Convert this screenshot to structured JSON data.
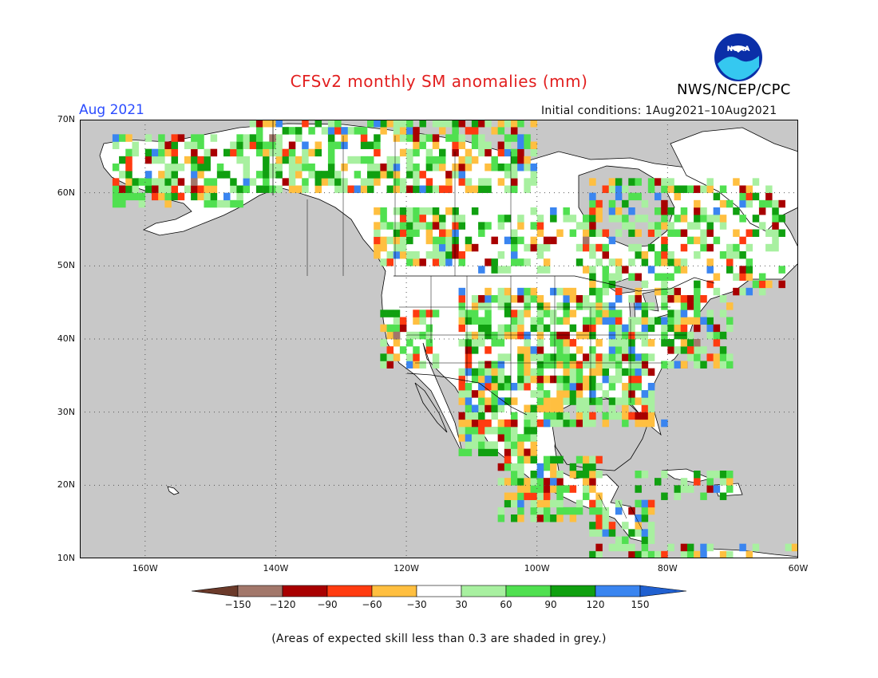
{
  "title": "CFSv2 monthly SM anomalies (mm)",
  "month_label": "Aug 2021",
  "initial_conditions": "Initial conditions: 1Aug2021–10Aug2021",
  "agency": "NWS/NCEP/CPC",
  "logo_text": "NOAA",
  "note": "(Areas of expected skill less than 0.3 are shaded in grey.)",
  "map": {
    "lon_range": [
      -170,
      -60
    ],
    "lat_range": [
      10,
      70
    ],
    "ocean_color": "#c8c8c8",
    "land_color": "#ffffff",
    "grid": "dotted"
  },
  "y_ticks": [
    {
      "value": 70,
      "label": "70N"
    },
    {
      "value": 60,
      "label": "60N"
    },
    {
      "value": 50,
      "label": "50N"
    },
    {
      "value": 40,
      "label": "40N"
    },
    {
      "value": 30,
      "label": "30N"
    },
    {
      "value": 20,
      "label": "20N"
    },
    {
      "value": 10,
      "label": "10N"
    }
  ],
  "x_ticks": [
    {
      "value": -160,
      "label": "160W"
    },
    {
      "value": -140,
      "label": "140W"
    },
    {
      "value": -120,
      "label": "120W"
    },
    {
      "value": -100,
      "label": "100W"
    },
    {
      "value": -80,
      "label": "80W"
    },
    {
      "value": -60,
      "label": "60W"
    }
  ],
  "colorbar": {
    "labels": [
      "−150",
      "−120",
      "−90",
      "−60",
      "−30",
      "30",
      "60",
      "90",
      "120",
      "150"
    ],
    "colors": [
      "#6b3a2a",
      "#a2776a",
      "#a80000",
      "#ff3b10",
      "#ffbf40",
      "#ffffff",
      "#a8f0a0",
      "#50e050",
      "#10a010",
      "#3a85f0",
      "#2060d0"
    ]
  },
  "anomaly_regions": [
    {
      "lon": [
        -165,
        -145
      ],
      "lat": [
        58,
        68
      ],
      "density": 0.55
    },
    {
      "lon": [
        -145,
        -100
      ],
      "lat": [
        60,
        70
      ],
      "density": 0.6
    },
    {
      "lon": [
        -125,
        -112
      ],
      "lat": [
        50,
        58
      ],
      "density": 0.7
    },
    {
      "lon": [
        -112,
        -90
      ],
      "lat": [
        49,
        58
      ],
      "density": 0.35
    },
    {
      "lon": [
        -92,
        -62
      ],
      "lat": [
        46,
        62
      ],
      "density": 0.45
    },
    {
      "lon": [
        -124,
        -115
      ],
      "lat": [
        36,
        44
      ],
      "density": 0.6
    },
    {
      "lon": [
        -112,
        -90
      ],
      "lat": [
        36,
        47
      ],
      "density": 0.65
    },
    {
      "lon": [
        -112,
        -100
      ],
      "lat": [
        24,
        36
      ],
      "density": 0.75
    },
    {
      "lon": [
        -100,
        -82
      ],
      "lat": [
        28,
        38
      ],
      "density": 0.75
    },
    {
      "lon": [
        -90,
        -70
      ],
      "lat": [
        36,
        46
      ],
      "density": 0.6
    },
    {
      "lon": [
        -106,
        -90
      ],
      "lat": [
        15,
        24
      ],
      "density": 0.6
    },
    {
      "lon": [
        -92,
        -82
      ],
      "lat": [
        10,
        18
      ],
      "density": 0.55
    },
    {
      "lon": [
        -85,
        -70
      ],
      "lat": [
        18,
        22
      ],
      "density": 0.5
    },
    {
      "lon": [
        -82,
        -60
      ],
      "lat": [
        10,
        12
      ],
      "density": 0.5
    }
  ],
  "anomaly_cells": [
    {
      "lon": -122,
      "lat": 40,
      "value": -130
    },
    {
      "lon": -121,
      "lat": 41,
      "value": -100
    },
    {
      "lon": -121,
      "lat": 42,
      "value": -90
    },
    {
      "lon": -118,
      "lat": 56,
      "value": -70
    },
    {
      "lon": -116,
      "lat": 55,
      "value": -100
    },
    {
      "lon": -115,
      "lat": 54,
      "value": -80
    },
    {
      "lon": -117,
      "lat": 53,
      "value": -60
    },
    {
      "lon": -114,
      "lat": 57,
      "value": -60
    },
    {
      "lon": -123,
      "lat": 50,
      "value": -90
    },
    {
      "lon": -76,
      "lat": 39,
      "value": -130
    },
    {
      "lon": -77,
      "lat": 38,
      "value": -70
    },
    {
      "lon": -78,
      "lat": 36,
      "value": -40
    },
    {
      "lon": -93,
      "lat": 53,
      "value": -150
    },
    {
      "lon": -92,
      "lat": 55,
      "value": -110
    },
    {
      "lon": -141,
      "lat": 67,
      "value": -150
    },
    {
      "lon": -159,
      "lat": 60,
      "value": -100
    },
    {
      "lon": -153,
      "lat": 61,
      "value": -130
    },
    {
      "lon": -111,
      "lat": 31,
      "value": 140
    },
    {
      "lon": -110,
      "lat": 30,
      "value": 140
    },
    {
      "lon": -109,
      "lat": 33,
      "value": 130
    },
    {
      "lon": -108,
      "lat": 34,
      "value": 130
    },
    {
      "lon": -106,
      "lat": 31,
      "value": 125
    },
    {
      "lon": -99,
      "lat": 28,
      "value": 130
    },
    {
      "lon": -84,
      "lat": 32,
      "value": 120
    },
    {
      "lon": -89,
      "lat": 40,
      "value": 125
    },
    {
      "lon": -87,
      "lat": 41,
      "value": 125
    },
    {
      "lon": -81,
      "lat": 28,
      "value": 130
    },
    {
      "lon": -75,
      "lat": 42,
      "value": 130
    },
    {
      "lon": -73,
      "lat": 19,
      "value": 130
    },
    {
      "lon": -98,
      "lat": 20,
      "value": 130
    },
    {
      "lon": -100,
      "lat": 22,
      "value": 125
    },
    {
      "lon": -130,
      "lat": 68,
      "value": 125
    },
    {
      "lon": -125,
      "lat": 69,
      "value": 125
    }
  ]
}
